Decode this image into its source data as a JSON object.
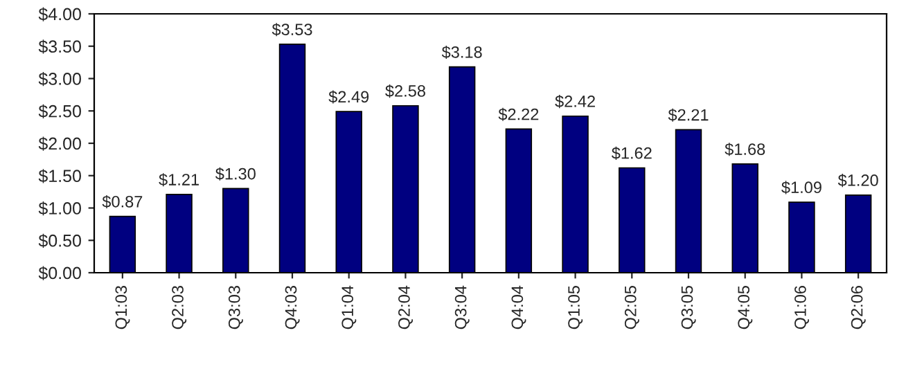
{
  "chart_data": {
    "type": "bar",
    "categories": [
      "Q1:03",
      "Q2:03",
      "Q3:03",
      "Q4:03",
      "Q1:04",
      "Q2:04",
      "Q3:04",
      "Q4:04",
      "Q1:05",
      "Q2:05",
      "Q3:05",
      "Q4:05",
      "Q1:06",
      "Q2:06"
    ],
    "values": [
      0.87,
      1.21,
      1.3,
      3.53,
      2.49,
      2.58,
      3.18,
      2.22,
      2.42,
      1.62,
      2.21,
      1.68,
      1.09,
      1.2
    ],
    "value_labels": [
      "$0.87",
      "$1.21",
      "$1.30",
      "$3.53",
      "$2.49",
      "$2.58",
      "$3.18",
      "$2.22",
      "$2.42",
      "$1.62",
      "$2.21",
      "$1.68",
      "$1.09",
      "$1.20"
    ],
    "color": "#000080",
    "ylim": [
      0,
      4
    ],
    "yticks": [
      {
        "value": 0,
        "label": "$0.00"
      },
      {
        "value": 0.5,
        "label": "$0.50"
      },
      {
        "value": 1,
        "label": "$1.00"
      },
      {
        "value": 1.5,
        "label": "$1.50"
      },
      {
        "value": 2,
        "label": "$2.00"
      },
      {
        "value": 2.5,
        "label": "$2.50"
      },
      {
        "value": 3,
        "label": "$3.00"
      },
      {
        "value": 3.5,
        "label": "$3.50"
      },
      {
        "value": 4,
        "label": "$4.00"
      }
    ],
    "grid": false,
    "legend": false
  }
}
